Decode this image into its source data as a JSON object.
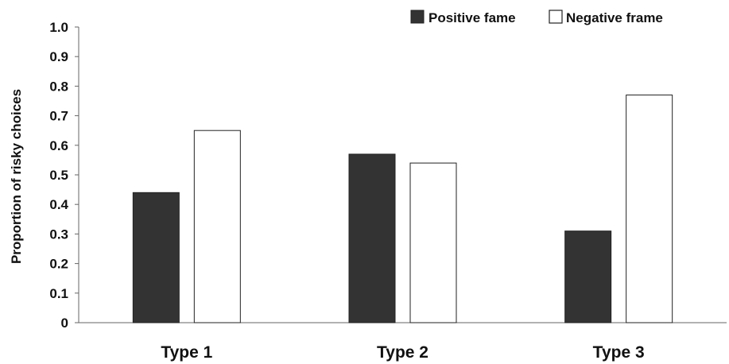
{
  "chart_data": {
    "type": "bar",
    "categories": [
      "Type 1",
      "Type 2",
      "Type 3"
    ],
    "series": [
      {
        "name": "Positive fame",
        "values": [
          0.44,
          0.57,
          0.31
        ],
        "color": "#333333",
        "stroke": "#222222"
      },
      {
        "name": "Negative frame",
        "values": [
          0.65,
          0.54,
          0.77
        ],
        "color": "#ffffff",
        "stroke": "#222222"
      }
    ],
    "title": "",
    "xlabel": "",
    "ylabel": "Proportion of risky choices",
    "ylim": [
      0,
      1.0
    ],
    "yticks": [
      "0",
      "0.1",
      "0.2",
      "0.3",
      "0.4",
      "0.5",
      "0.6",
      "0.7",
      "0.8",
      "0.9",
      "1.0"
    ],
    "grid": false,
    "legend_position": "top-right"
  }
}
